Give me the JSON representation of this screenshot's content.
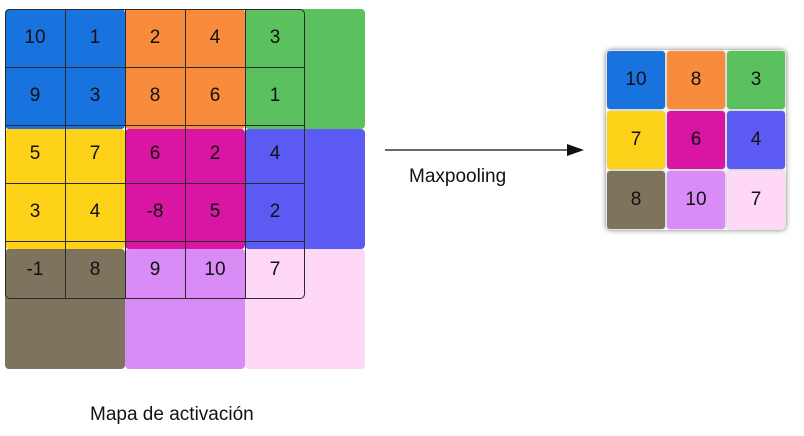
{
  "activation_map": {
    "label": "Mapa de activación",
    "values": [
      [
        "10",
        "1",
        "2",
        "4",
        "3"
      ],
      [
        "9",
        "3",
        "8",
        "6",
        "1"
      ],
      [
        "5",
        "7",
        "6",
        "2",
        "4"
      ],
      [
        "3",
        "4",
        "-8",
        "5",
        "2"
      ],
      [
        "-1",
        "8",
        "9",
        "10",
        "7"
      ]
    ]
  },
  "region_colors": [
    [
      "#1873de",
      "#f98c3c",
      "#5bc15e"
    ],
    [
      "#ffd21a",
      "#d915a4",
      "#5b5bf4"
    ],
    [
      "#7e735c",
      "#d98cf6",
      "#ffd7f7"
    ]
  ],
  "operation": {
    "label": "Maxpooling"
  },
  "pooled_output": {
    "values": [
      [
        "10",
        "8",
        "3"
      ],
      [
        "7",
        "6",
        "4"
      ],
      [
        "8",
        "10",
        "7"
      ]
    ]
  }
}
